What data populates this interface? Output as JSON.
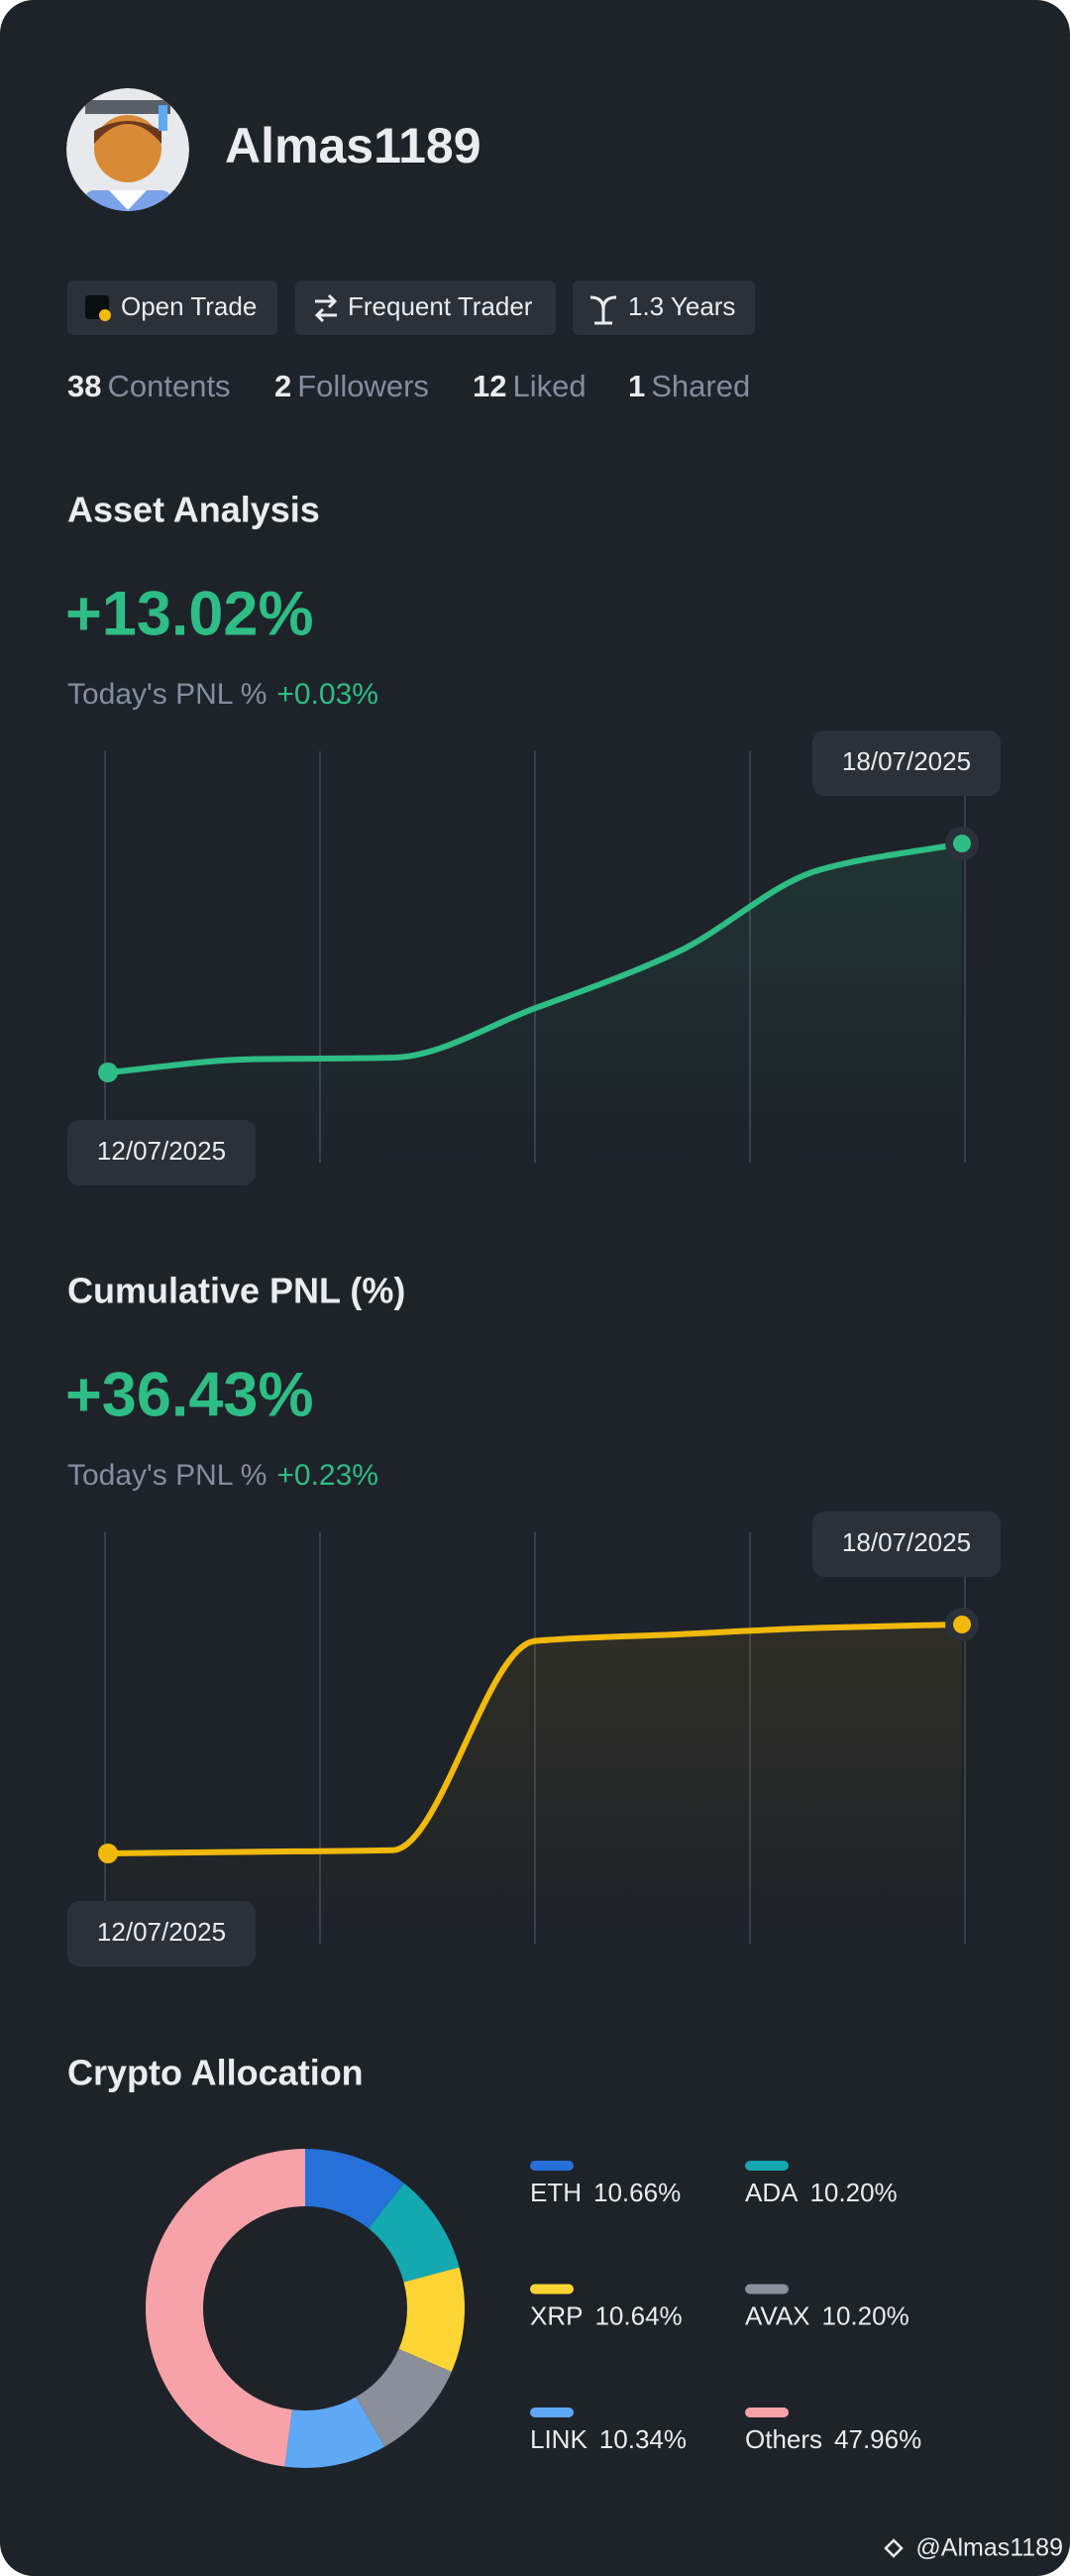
{
  "profile": {
    "username": "Almas1189",
    "badges": [
      "Open Trade",
      "Frequent Trader",
      "1.3 Years"
    ],
    "stats": [
      {
        "value": 38,
        "label": "Contents"
      },
      {
        "value": 2,
        "label": "Followers"
      },
      {
        "value": 12,
        "label": "Liked"
      },
      {
        "value": 1,
        "label": "Shared"
      }
    ]
  },
  "charts": [
    {
      "title": "Asset Analysis",
      "headline": "+13.02%",
      "today_label": "Today's PNL %",
      "today_value": "+0.03%",
      "chart_data": {
        "type": "line",
        "categories": [
          "12/07/2025",
          null,
          null,
          null,
          null,
          null,
          "18/07/2025"
        ],
        "series": [
          {
            "color": "#2ebd85",
            "values": [
              0,
              0.75,
              0.84,
              3.65,
              6.84,
              11.52,
              13.02
            ]
          }
        ]
      }
    },
    {
      "title": "Cumulative PNL (%)",
      "headline": "+36.43%",
      "today_label": "Today's PNL %",
      "today_value": "+0.23%",
      "chart_data": {
        "type": "line",
        "categories": [
          "12/07/2025",
          null,
          null,
          null,
          null,
          null,
          "18/07/2025"
        ],
        "series": [
          {
            "color": "#f0b90b",
            "values": [
              0,
              0.26,
              0.52,
              33.81,
              34.86,
              35.9,
              36.43
            ]
          }
        ]
      }
    }
  ],
  "allocation": {
    "title": "Crypto Allocation",
    "chart_data": {
      "type": "donut",
      "categories": [
        "ETH",
        "ADA",
        "XRP",
        "AVAX",
        "LINK",
        "Others"
      ],
      "values": [
        10.66,
        10.2,
        10.64,
        10.2,
        10.34,
        47.96
      ],
      "value_labels": [
        "10.66%",
        "10.20%",
        "10.64%",
        "10.20%",
        "10.34%",
        "47.96%"
      ],
      "colors": [
        "#2670d9",
        "#14a8b0",
        "#fcd535",
        "#8a8f99",
        "#5ea8f5",
        "#f7a1a8"
      ]
    }
  },
  "watermark": "@Almas1189"
}
